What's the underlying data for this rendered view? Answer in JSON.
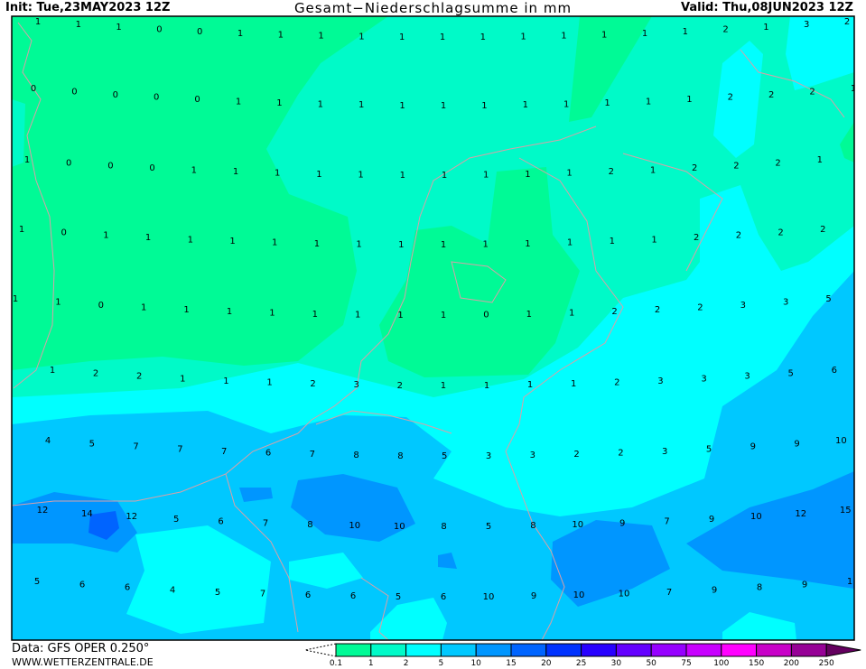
{
  "header": {
    "init": "Init: Tue,23MAY2023 12Z",
    "title": "Gesamt−Niederschlagsumme in mm",
    "valid": "Valid: Thu,08JUN2023 12Z"
  },
  "footer": {
    "data_source": "Data: GFS OPER 0.250°",
    "website": "WWW.WETTERZENTRALE.DE"
  },
  "legend": {
    "labels": [
      "0.1",
      "1",
      "2",
      "5",
      "10",
      "15",
      "20",
      "25",
      "30",
      "50",
      "75",
      "100",
      "150",
      "200",
      "250"
    ],
    "colors": [
      "#00fa96",
      "#00fac8",
      "#00ffff",
      "#00c8ff",
      "#0096ff",
      "#0064ff",
      "#0032ff",
      "#2800ff",
      "#6400ff",
      "#9600ff",
      "#c800ff",
      "#ff00ff",
      "#c800c8",
      "#960096",
      "#64005f"
    ]
  },
  "map": {
    "border_color": "#d8a0a8",
    "precip_values_mm": [
      [
        "1",
        "1",
        "1",
        "0",
        "0",
        "1",
        "1",
        "1",
        "1",
        "1",
        "1",
        "1",
        "1",
        "1",
        "1",
        "1",
        "1",
        "2",
        "1",
        "3",
        "2"
      ],
      [
        "0",
        "0",
        "0",
        "0",
        "0",
        "1",
        "1",
        "1",
        "1",
        "1",
        "1",
        "1",
        "1",
        "1",
        "1",
        "1",
        "1",
        "2",
        "2",
        "2",
        "1"
      ],
      [
        "1",
        "0",
        "0",
        "0",
        "1",
        "1",
        "1",
        "1",
        "1",
        "1",
        "1",
        "1",
        "1",
        "1",
        "2",
        "1",
        "2",
        "2",
        "2",
        "1"
      ],
      [
        "1",
        "0",
        "1",
        "1",
        "1",
        "1",
        "1",
        "1",
        "1",
        "1",
        "1",
        "1",
        "1",
        "1",
        "1",
        "1",
        "2",
        "2",
        "2",
        "2"
      ],
      [
        "1",
        "1",
        "0",
        "1",
        "1",
        "1",
        "1",
        "1",
        "1",
        "1",
        "1",
        "0",
        "1",
        "1",
        "2",
        "2",
        "2",
        "3",
        "3",
        "5"
      ],
      [
        "1",
        "2",
        "2",
        "1",
        "1",
        "1",
        "2",
        "3",
        "2",
        "1",
        "1",
        "1",
        "1",
        "2",
        "3",
        "3",
        "3",
        "5",
        "6"
      ],
      [
        "4",
        "5",
        "7",
        "7",
        "7",
        "6",
        "7",
        "8",
        "8",
        "5",
        "3",
        "3",
        "2",
        "2",
        "3",
        "5",
        "9",
        "9",
        "10"
      ],
      [
        "12",
        "14",
        "12",
        "5",
        "6",
        "7",
        "8",
        "10",
        "10",
        "8",
        "5",
        "8",
        "10",
        "9",
        "7",
        "9",
        "10",
        "12",
        "15"
      ],
      [
        "5",
        "6",
        "6",
        "4",
        "5",
        "7",
        "6",
        "6",
        "5",
        "6",
        "10",
        "9",
        "10",
        "10",
        "7",
        "9",
        "8",
        "9",
        "1"
      ]
    ]
  }
}
